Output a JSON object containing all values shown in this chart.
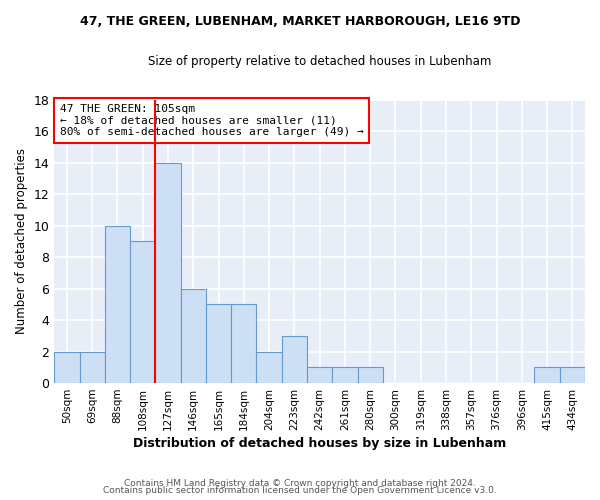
{
  "title1": "47, THE GREEN, LUBENHAM, MARKET HARBOROUGH, LE16 9TD",
  "title2": "Size of property relative to detached houses in Lubenham",
  "xlabel": "Distribution of detached houses by size in Lubenham",
  "ylabel": "Number of detached properties",
  "bin_labels": [
    "50sqm",
    "69sqm",
    "88sqm",
    "108sqm",
    "127sqm",
    "146sqm",
    "165sqm",
    "184sqm",
    "204sqm",
    "223sqm",
    "242sqm",
    "261sqm",
    "280sqm",
    "300sqm",
    "319sqm",
    "338sqm",
    "357sqm",
    "376sqm",
    "396sqm",
    "415sqm",
    "434sqm"
  ],
  "bar_values": [
    2,
    2,
    10,
    9,
    14,
    6,
    5,
    5,
    2,
    3,
    1,
    1,
    1,
    0,
    0,
    0,
    0,
    0,
    0,
    1,
    1
  ],
  "bar_color": "#ccdff5",
  "bar_edge_color": "#6699cc",
  "vline_x": 3.5,
  "vline_color": "red",
  "annotation_line1": "47 THE GREEN: 105sqm",
  "annotation_line2": "← 18% of detached houses are smaller (11)",
  "annotation_line3": "80% of semi-detached houses are larger (49) →",
  "annotation_box_color": "white",
  "annotation_box_edge": "red",
  "ylim": [
    0,
    18
  ],
  "yticks": [
    0,
    2,
    4,
    6,
    8,
    10,
    12,
    14,
    16,
    18
  ],
  "footer1": "Contains HM Land Registry data © Crown copyright and database right 2024.",
  "footer2": "Contains public sector information licensed under the Open Government Licence v3.0.",
  "bg_color": "#ffffff",
  "plot_bg_color": "#e8eef8"
}
